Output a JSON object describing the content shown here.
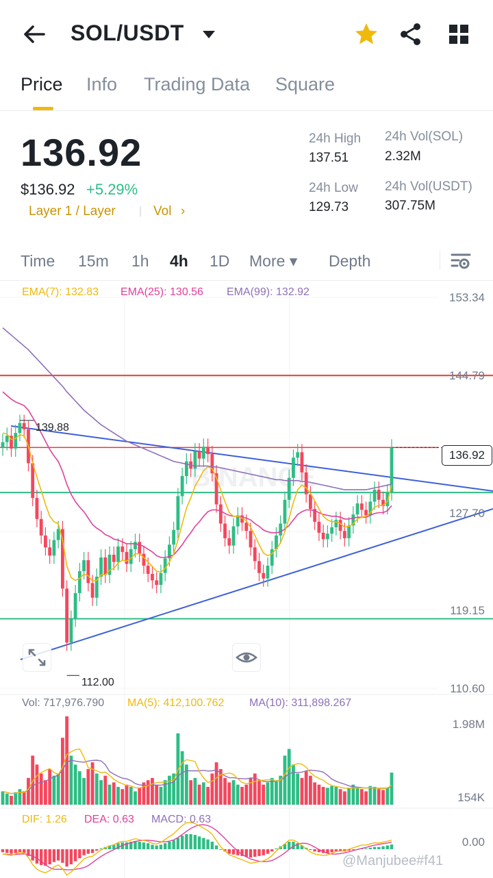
{
  "header": {
    "title": "SOL/USDT",
    "icons": {
      "back": "back-arrow-icon",
      "caret": "caret-down-icon",
      "star": "star-icon",
      "share": "share-icon",
      "grid": "grid-icon"
    },
    "star_color": "#f0b90b"
  },
  "tabs": [
    {
      "label": "Price",
      "active": true
    },
    {
      "label": "Info",
      "active": false
    },
    {
      "label": "Trading Data",
      "active": false
    },
    {
      "label": "Square",
      "active": false
    }
  ],
  "summary": {
    "price": "136.92",
    "usd_price": "$136.92",
    "change": "+5.29%",
    "tag_layer": "Layer 1 / Layer",
    "tag_vol": "Vol",
    "tag_chevron": "›",
    "high_label": "24h High",
    "high_value": "137.51",
    "low_label": "24h Low",
    "low_value": "129.73",
    "vol_sol_label": "24h Vol(SOL)",
    "vol_sol_value": "2.32M",
    "vol_usdt_label": "24h Vol(USDT)",
    "vol_usdt_value": "307.75M"
  },
  "timeframes": [
    {
      "label": "Time"
    },
    {
      "label": "15m"
    },
    {
      "label": "1h"
    },
    {
      "label": "4h",
      "active": true
    },
    {
      "label": "1D"
    },
    {
      "label": "More ▾"
    },
    {
      "label": "Depth"
    }
  ],
  "chart_legend": {
    "ema7": "EMA(7): 132.83",
    "ema25": "EMA(25): 130.56",
    "ema99": "EMA(99): 132.92",
    "vol": "Vol: 717,976.790",
    "ma5": "MA(5): 412,100.762",
    "ma10": "MA(10): 311,898.267",
    "dif": "DIF: 1.26",
    "dea": "DEA: 0.63",
    "macd": "MACD: 0.63"
  },
  "axis_labels": [
    "153.34",
    "144.79",
    "136.92",
    "127.70",
    "119.15",
    "110.60"
  ],
  "vol_axis": {
    "top": "1.98M",
    "bottom": "154K"
  },
  "macd_axis": "0.00",
  "annotations": {
    "high": "139.88",
    "low": "112.00",
    "watermark_text": "BINANCE"
  },
  "watermark": "@Manjubee#f41",
  "colors": {
    "accent": "#f0b90b",
    "up": "#2ebd85",
    "down": "#f6465d",
    "ema7": "#f0b90b",
    "ema25": "#e0409b",
    "ema99": "#8e6fb8",
    "trend": "#3d5fd9"
  },
  "chart_data": {
    "type": "candlestick",
    "price_range": [
      110.6,
      153.34
    ],
    "price_ticks": [
      153.34,
      144.79,
      136.92,
      127.7,
      119.15,
      110.6
    ],
    "close": [
      137.5,
      138.2,
      136.8,
      138.5,
      139.6,
      138.9,
      135.2,
      131.4,
      129.1,
      127.3,
      126.0,
      125.1,
      126.8,
      128.0,
      121.5,
      115.6,
      118.2,
      121.0,
      123.4,
      124.6,
      122.1,
      120.5,
      122.8,
      124.9,
      123.0,
      125.2,
      124.4,
      126.1,
      125.5,
      124.2,
      125.8,
      126.6,
      125.3,
      124.0,
      123.1,
      122.4,
      121.9,
      123.2,
      124.8,
      126.3,
      127.9,
      131.6,
      133.8,
      135.4,
      134.6,
      136.5,
      135.7,
      137.0,
      136.2,
      134.1,
      130.7,
      128.6,
      127.0,
      126.2,
      128.3,
      129.5,
      128.7,
      127.8,
      126.0,
      124.5,
      123.2,
      122.6,
      124.0,
      125.8,
      127.3,
      128.6,
      131.2,
      133.6,
      135.8,
      136.4,
      134.2,
      131.8,
      130.2,
      128.8,
      127.6,
      126.9,
      127.5,
      128.2,
      129.0,
      127.8,
      127.0,
      128.4,
      129.6,
      130.8,
      130.1,
      129.5,
      131.0,
      132.3,
      131.2,
      130.5,
      132.0,
      136.92
    ],
    "ema7": [
      138.5,
      138.4,
      137.8,
      137.9,
      138.3,
      138.2,
      137.1,
      135.2,
      133.7,
      132.2,
      130.7,
      129.4,
      128.8,
      128.6,
      126.8,
      124.0,
      122.7,
      122.4,
      122.6,
      123.1,
      122.9,
      122.3,
      122.4,
      123.0,
      123.0,
      123.5,
      123.7,
      124.3,
      124.6,
      124.5,
      124.8,
      125.3,
      125.3,
      124.9,
      124.4,
      123.9,
      123.4,
      123.3,
      123.7,
      124.4,
      125.3,
      126.8,
      128.6,
      130.3,
      131.4,
      132.7,
      133.5,
      134.4,
      134.8,
      134.6,
      133.6,
      132.3,
      131.0,
      129.8,
      129.4,
      129.4,
      129.2,
      128.9,
      128.2,
      127.3,
      126.3,
      125.4,
      125.1,
      125.3,
      125.8,
      126.5,
      127.7,
      129.2,
      130.9,
      132.3,
      132.8,
      132.5,
      131.9,
      131.1,
      130.2,
      129.4,
      129.0,
      128.8,
      128.8,
      128.6,
      128.2,
      128.3,
      128.6,
      129.1,
      129.3,
      129.4,
      129.8,
      130.4,
      130.6,
      130.6,
      131.0,
      132.83
    ],
    "ema25": [
      143.0,
      142.6,
      142.2,
      141.9,
      141.7,
      141.5,
      141.0,
      140.2,
      139.4,
      138.5,
      137.6,
      136.7,
      136.0,
      135.4,
      134.3,
      132.9,
      131.8,
      131.0,
      130.4,
      129.9,
      129.2,
      128.5,
      128.1,
      127.8,
      127.4,
      127.2,
      126.9,
      126.8,
      126.6,
      126.4,
      126.4,
      126.4,
      126.3,
      126.1,
      125.8,
      125.5,
      125.1,
      124.9,
      124.9,
      125.0,
      125.2,
      125.7,
      126.3,
      127.0,
      127.6,
      128.3,
      128.8,
      129.4,
      129.9,
      130.1,
      130.1,
      130.0,
      129.7,
      129.5,
      129.4,
      129.4,
      129.3,
      129.2,
      129.0,
      128.6,
      128.3,
      127.9,
      127.7,
      127.6,
      127.6,
      127.7,
      128.0,
      128.4,
      129.0,
      129.6,
      129.9,
      130.1,
      130.1,
      130.0,
      129.8,
      129.6,
      129.5,
      129.4,
      129.4,
      129.3,
      129.1,
      129.1,
      129.2,
      129.3,
      129.3,
      129.3,
      129.5,
      129.7,
      129.8,
      129.8,
      130.0,
      130.56
    ],
    "ema99": [
      150.0,
      149.6,
      149.2,
      148.8,
      148.4,
      148.0,
      147.6,
      147.1,
      146.6,
      146.1,
      145.6,
      145.1,
      144.6,
      144.1,
      143.6,
      143.0,
      142.5,
      142.0,
      141.5,
      141.0,
      140.6,
      140.2,
      139.8,
      139.4,
      139.1,
      138.8,
      138.5,
      138.2,
      137.9,
      137.6,
      137.4,
      137.2,
      137.0,
      136.8,
      136.6,
      136.4,
      136.2,
      136.0,
      135.8,
      135.6,
      135.4,
      135.3,
      135.2,
      135.1,
      135.0,
      134.9,
      134.9,
      134.9,
      134.9,
      134.8,
      134.8,
      134.7,
      134.6,
      134.5,
      134.4,
      134.3,
      134.2,
      134.1,
      134.0,
      133.9,
      133.8,
      133.7,
      133.6,
      133.5,
      133.4,
      133.4,
      133.3,
      133.3,
      133.3,
      133.3,
      133.2,
      133.2,
      133.1,
      133.0,
      132.9,
      132.8,
      132.7,
      132.6,
      132.5,
      132.4,
      132.3,
      132.3,
      132.3,
      132.3,
      132.3,
      132.3,
      132.4,
      132.5,
      132.6,
      132.7,
      132.8,
      132.92
    ],
    "lines": {
      "resistance": 144.79,
      "level": 136.92,
      "support_a": 132.0,
      "support_b": 118.2
    },
    "volume_range": [
      0,
      1.98
    ],
    "volume": [
      0.3,
      0.25,
      0.2,
      0.28,
      0.35,
      0.3,
      0.6,
      1.1,
      0.9,
      0.7,
      0.55,
      0.8,
      0.65,
      0.7,
      1.5,
      1.98,
      1.1,
      0.9,
      0.75,
      0.6,
      0.8,
      0.95,
      0.7,
      0.55,
      0.65,
      0.45,
      0.5,
      0.4,
      0.35,
      0.45,
      0.4,
      0.3,
      0.38,
      0.5,
      0.55,
      0.6,
      0.45,
      0.4,
      0.55,
      0.65,
      0.7,
      1.6,
      1.2,
      0.9,
      0.55,
      0.6,
      0.45,
      0.5,
      0.4,
      0.7,
      0.95,
      0.8,
      0.6,
      0.5,
      0.55,
      0.45,
      0.4,
      0.45,
      0.6,
      0.7,
      0.55,
      0.45,
      0.5,
      0.6,
      0.55,
      0.65,
      1.1,
      1.25,
      0.9,
      0.7,
      0.6,
      0.75,
      0.65,
      0.5,
      0.45,
      0.4,
      0.38,
      0.42,
      0.4,
      0.35,
      0.3,
      0.38,
      0.45,
      0.4,
      0.35,
      0.3,
      0.42,
      0.4,
      0.35,
      0.33,
      0.38,
      0.72
    ],
    "macd_hist": [
      -0.4,
      -0.5,
      -0.6,
      -0.5,
      -0.4,
      -0.5,
      -0.9,
      -1.5,
      -1.9,
      -2.1,
      -2.2,
      -2.0,
      -1.7,
      -1.5,
      -1.8,
      -2.3,
      -2.0,
      -1.6,
      -1.2,
      -0.8,
      -0.6,
      -0.5,
      -0.2,
      0.1,
      0.3,
      0.5,
      0.6,
      0.8,
      0.9,
      0.9,
      1.0,
      1.1,
      1.0,
      0.9,
      0.8,
      0.6,
      0.5,
      0.6,
      0.8,
      1.0,
      1.2,
      1.5,
      1.8,
      2.0,
      2.0,
      1.9,
      1.7,
      1.5,
      1.3,
      1.0,
      0.5,
      0.0,
      -0.3,
      -0.6,
      -0.7,
      -0.8,
      -0.9,
      -1.0,
      -1.1,
      -1.0,
      -0.9,
      -0.8,
      -0.6,
      -0.3,
      0.1,
      0.4,
      0.7,
      1.0,
      1.0,
      0.8,
      0.5,
      0.2,
      -0.1,
      -0.3,
      -0.4,
      -0.5,
      -0.5,
      -0.4,
      -0.3,
      -0.3,
      -0.3,
      -0.2,
      -0.1,
      0.0,
      0.1,
      0.1,
      0.2,
      0.3,
      0.3,
      0.4,
      0.5,
      0.63
    ]
  }
}
